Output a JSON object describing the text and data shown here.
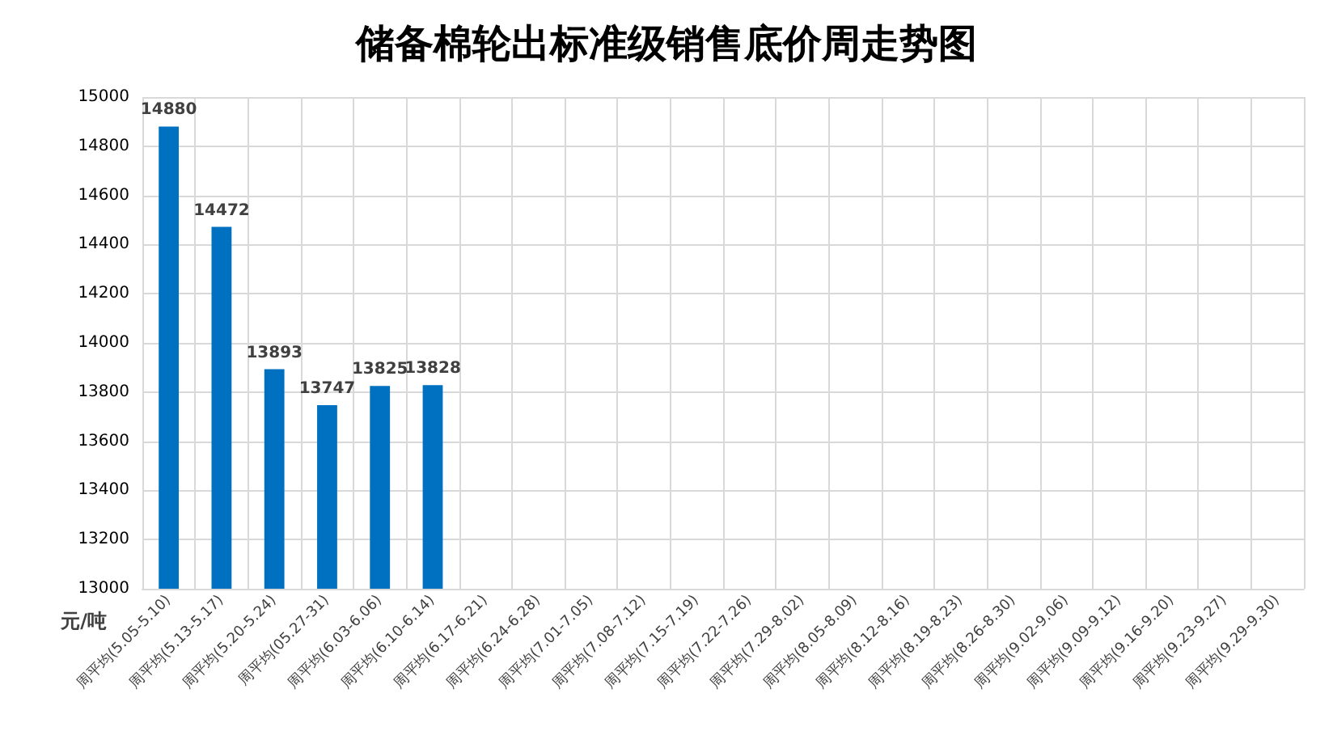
{
  "chart_data": {
    "type": "bar",
    "title": "储备棉轮出标准级销售底价周走势图",
    "ylabel": "元/吨",
    "categories": [
      "周平均(5.05-5.10)",
      "周平均(5.13-5.17)",
      "周平均(5.20-5.24)",
      "周平均(05.27-31)",
      "周平均(6.03-6.06)",
      "周平均(6.10-6.14)",
      "周平均(6.17-6.21)",
      "周平均(6.24-6.28)",
      "周平均(7.01-7.05)",
      "周平均(7.08-7.12)",
      "周平均(7.15-7.19)",
      "周平均(7.22-7.26)",
      "周平均(7.29-8.02)",
      "周平均(8.05-8.09)",
      "周平均(8.12-8.16)",
      "周平均(8.19-8.23)",
      "周平均(8.26-8.30)",
      "周平均(9.02-9.06)",
      "周平均(9.09-9.12)",
      "周平均(9.16-9.20)",
      "周平均(9.23-9.27)",
      "周平均(9.29-9.30)"
    ],
    "values": [
      14880,
      14472,
      13893,
      13747,
      13825,
      13828,
      null,
      null,
      null,
      null,
      null,
      null,
      null,
      null,
      null,
      null,
      null,
      null,
      null,
      null,
      null,
      null
    ],
    "color": "#0070c0",
    "ylim": [
      13000,
      15000
    ],
    "yticks": [
      13000,
      13200,
      13400,
      13600,
      13800,
      14000,
      14200,
      14400,
      14600,
      14800,
      15000
    ],
    "grid": true,
    "data_labels": true
  }
}
